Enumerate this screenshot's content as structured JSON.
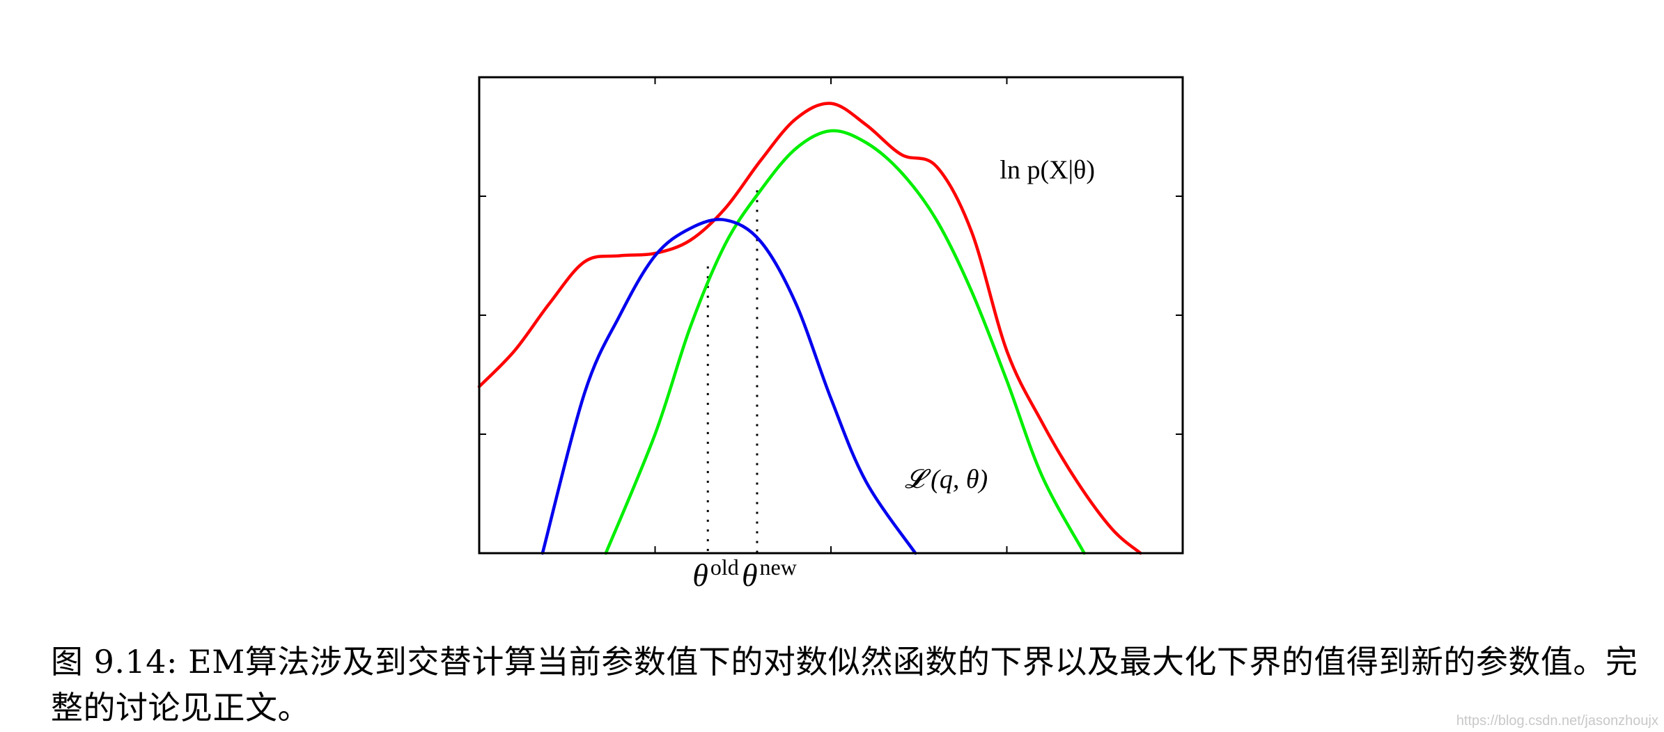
{
  "chart_data": {
    "type": "line",
    "xlim": [
      0,
      10
    ],
    "ylim": [
      0,
      4
    ],
    "grid": false,
    "x_ticks": [
      2.5,
      5,
      7.5
    ],
    "y_ticks": [
      1,
      2,
      3
    ],
    "series": [
      {
        "name": "ln p(X|θ)",
        "color": "#ff0000",
        "points": [
          [
            0,
            1.4
          ],
          [
            0.5,
            1.7
          ],
          [
            1,
            2.1
          ],
          [
            1.5,
            2.45
          ],
          [
            2,
            2.5
          ],
          [
            2.5,
            2.52
          ],
          [
            3,
            2.63
          ],
          [
            3.5,
            2.9
          ],
          [
            4,
            3.3
          ],
          [
            4.5,
            3.65
          ],
          [
            5,
            3.78
          ],
          [
            5.5,
            3.6
          ],
          [
            6,
            3.35
          ],
          [
            6.5,
            3.25
          ],
          [
            7,
            2.7
          ],
          [
            7.5,
            1.7
          ],
          [
            8,
            1.1
          ],
          [
            8.5,
            0.6
          ],
          [
            9,
            0.2
          ],
          [
            9.4,
            0
          ]
        ]
      },
      {
        "name": "L(q,θ) new",
        "color": "#00ee00",
        "points": [
          [
            1.8,
            0
          ],
          [
            2.5,
            1
          ],
          [
            3,
            1.9
          ],
          [
            3.5,
            2.6
          ],
          [
            4,
            3.05
          ],
          [
            4.5,
            3.4
          ],
          [
            5,
            3.55
          ],
          [
            5.5,
            3.45
          ],
          [
            6,
            3.2
          ],
          [
            6.5,
            2.8
          ],
          [
            7,
            2.2
          ],
          [
            7.5,
            1.45
          ],
          [
            8,
            0.65
          ],
          [
            8.6,
            0
          ]
        ]
      },
      {
        "name": "L(q,θ)",
        "color": "#0000ee",
        "points": [
          [
            0.9,
            0
          ],
          [
            1.5,
            1.35
          ],
          [
            2,
            2
          ],
          [
            2.5,
            2.5
          ],
          [
            3,
            2.73
          ],
          [
            3.5,
            2.8
          ],
          [
            4,
            2.62
          ],
          [
            4.5,
            2.1
          ],
          [
            5,
            1.3
          ],
          [
            5.5,
            0.6
          ],
          [
            6.2,
            0
          ]
        ]
      }
    ],
    "markers": [
      {
        "label_base": "θ",
        "label_sup": "old",
        "x": 3.25,
        "y": 2.41
      },
      {
        "label_base": "θ",
        "label_sup": "new",
        "x": 3.95,
        "y": 3.05
      }
    ],
    "annotations": [
      {
        "text": "ln p(X|θ)",
        "x": 7.4,
        "y": 3.15
      },
      {
        "text": "𝓛 (q, θ)",
        "x": 6.05,
        "y": 0.55
      }
    ]
  },
  "caption": "图 9.14: EM算法涉及到交替计算当前参数值下的对数似然函数的下界以及最大化下界的值得到新的参数值。完整的讨论见正文。",
  "watermark": "https://blog.csdn.net/jasonzhoujx"
}
